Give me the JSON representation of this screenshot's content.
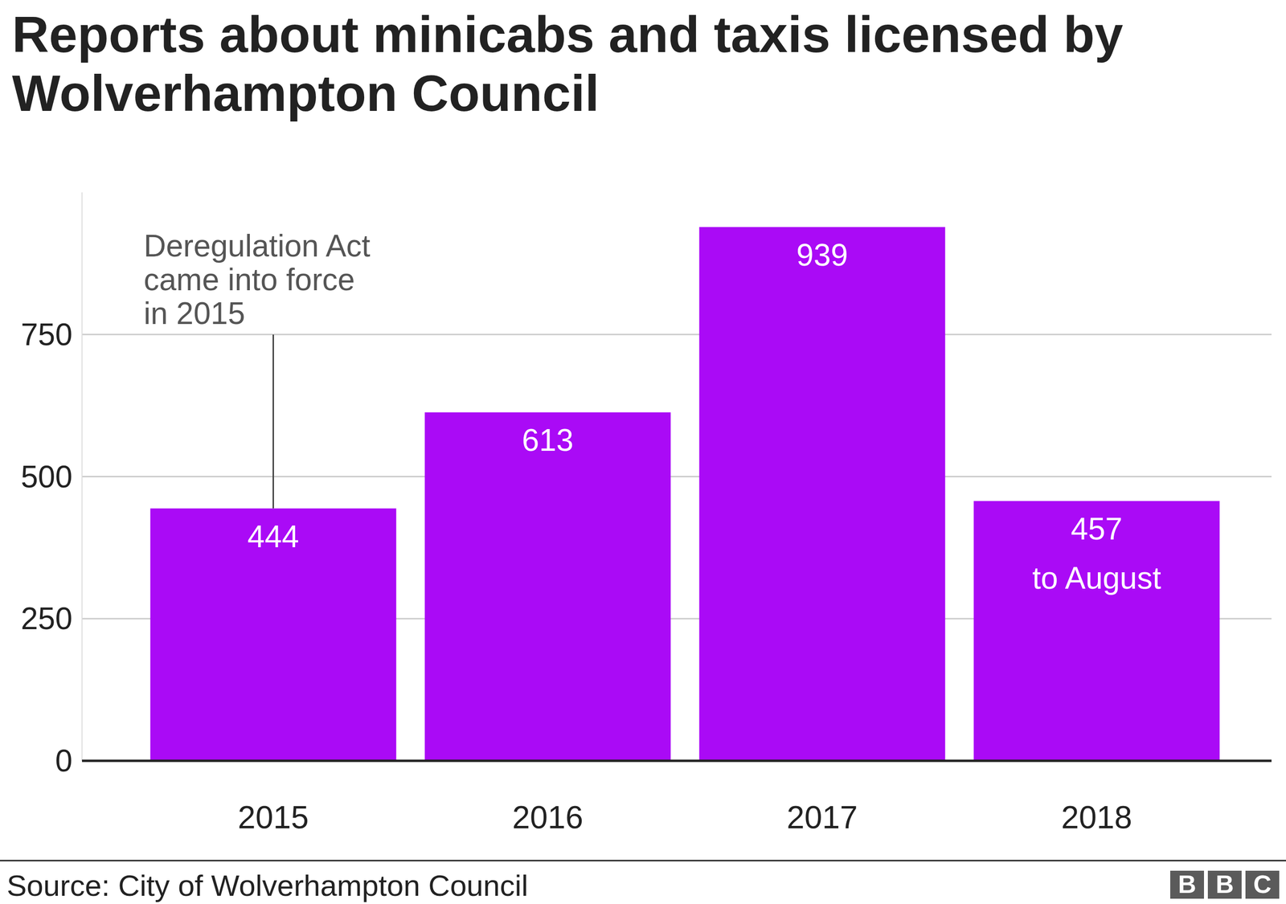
{
  "chart_data": {
    "type": "bar",
    "title": "Reports about minicabs and taxis licensed by Wolverhampton Council",
    "categories": [
      "2015",
      "2016",
      "2017",
      "2018"
    ],
    "values": [
      444,
      613,
      939,
      457
    ],
    "color": "#aa0af6",
    "ylim": [
      0,
      1000
    ],
    "yticks": [
      0,
      250,
      500,
      750
    ],
    "grid": true,
    "data_labels": true,
    "annotations": [
      {
        "text": "Deregulation Act\ncame into force\nin 2015",
        "x": "2015"
      },
      {
        "text": "to August",
        "x": "2018"
      }
    ],
    "source": "Source: City of Wolverhampton Council",
    "logo": "BBC"
  }
}
